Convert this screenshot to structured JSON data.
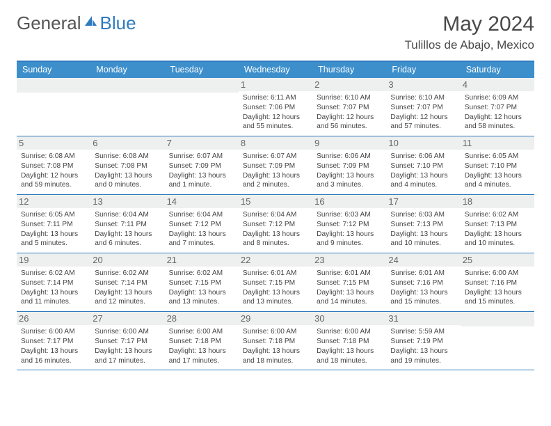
{
  "brand": {
    "part1": "General",
    "part2": "Blue"
  },
  "title": "May 2024",
  "location": "Tulillos de Abajo, Mexico",
  "colors": {
    "header_band": "#3d8fcc",
    "rule": "#2f7bbf",
    "daynum_bg": "#eef0ef",
    "text": "#444444",
    "title_text": "#4a4a4a"
  },
  "layout": {
    "first_weekday_index": 3,
    "num_days": 31,
    "columns": 7
  },
  "dow": [
    "Sunday",
    "Monday",
    "Tuesday",
    "Wednesday",
    "Thursday",
    "Friday",
    "Saturday"
  ],
  "days": [
    {
      "n": 1,
      "sunrise": "6:11 AM",
      "sunset": "7:06 PM",
      "daylight": "12 hours and 55 minutes."
    },
    {
      "n": 2,
      "sunrise": "6:10 AM",
      "sunset": "7:07 PM",
      "daylight": "12 hours and 56 minutes."
    },
    {
      "n": 3,
      "sunrise": "6:10 AM",
      "sunset": "7:07 PM",
      "daylight": "12 hours and 57 minutes."
    },
    {
      "n": 4,
      "sunrise": "6:09 AM",
      "sunset": "7:07 PM",
      "daylight": "12 hours and 58 minutes."
    },
    {
      "n": 5,
      "sunrise": "6:08 AM",
      "sunset": "7:08 PM",
      "daylight": "12 hours and 59 minutes."
    },
    {
      "n": 6,
      "sunrise": "6:08 AM",
      "sunset": "7:08 PM",
      "daylight": "13 hours and 0 minutes."
    },
    {
      "n": 7,
      "sunrise": "6:07 AM",
      "sunset": "7:09 PM",
      "daylight": "13 hours and 1 minute."
    },
    {
      "n": 8,
      "sunrise": "6:07 AM",
      "sunset": "7:09 PM",
      "daylight": "13 hours and 2 minutes."
    },
    {
      "n": 9,
      "sunrise": "6:06 AM",
      "sunset": "7:09 PM",
      "daylight": "13 hours and 3 minutes."
    },
    {
      "n": 10,
      "sunrise": "6:06 AM",
      "sunset": "7:10 PM",
      "daylight": "13 hours and 4 minutes."
    },
    {
      "n": 11,
      "sunrise": "6:05 AM",
      "sunset": "7:10 PM",
      "daylight": "13 hours and 4 minutes."
    },
    {
      "n": 12,
      "sunrise": "6:05 AM",
      "sunset": "7:11 PM",
      "daylight": "13 hours and 5 minutes."
    },
    {
      "n": 13,
      "sunrise": "6:04 AM",
      "sunset": "7:11 PM",
      "daylight": "13 hours and 6 minutes."
    },
    {
      "n": 14,
      "sunrise": "6:04 AM",
      "sunset": "7:12 PM",
      "daylight": "13 hours and 7 minutes."
    },
    {
      "n": 15,
      "sunrise": "6:04 AM",
      "sunset": "7:12 PM",
      "daylight": "13 hours and 8 minutes."
    },
    {
      "n": 16,
      "sunrise": "6:03 AM",
      "sunset": "7:12 PM",
      "daylight": "13 hours and 9 minutes."
    },
    {
      "n": 17,
      "sunrise": "6:03 AM",
      "sunset": "7:13 PM",
      "daylight": "13 hours and 10 minutes."
    },
    {
      "n": 18,
      "sunrise": "6:02 AM",
      "sunset": "7:13 PM",
      "daylight": "13 hours and 10 minutes."
    },
    {
      "n": 19,
      "sunrise": "6:02 AM",
      "sunset": "7:14 PM",
      "daylight": "13 hours and 11 minutes."
    },
    {
      "n": 20,
      "sunrise": "6:02 AM",
      "sunset": "7:14 PM",
      "daylight": "13 hours and 12 minutes."
    },
    {
      "n": 21,
      "sunrise": "6:02 AM",
      "sunset": "7:15 PM",
      "daylight": "13 hours and 13 minutes."
    },
    {
      "n": 22,
      "sunrise": "6:01 AM",
      "sunset": "7:15 PM",
      "daylight": "13 hours and 13 minutes."
    },
    {
      "n": 23,
      "sunrise": "6:01 AM",
      "sunset": "7:15 PM",
      "daylight": "13 hours and 14 minutes."
    },
    {
      "n": 24,
      "sunrise": "6:01 AM",
      "sunset": "7:16 PM",
      "daylight": "13 hours and 15 minutes."
    },
    {
      "n": 25,
      "sunrise": "6:00 AM",
      "sunset": "7:16 PM",
      "daylight": "13 hours and 15 minutes."
    },
    {
      "n": 26,
      "sunrise": "6:00 AM",
      "sunset": "7:17 PM",
      "daylight": "13 hours and 16 minutes."
    },
    {
      "n": 27,
      "sunrise": "6:00 AM",
      "sunset": "7:17 PM",
      "daylight": "13 hours and 17 minutes."
    },
    {
      "n": 28,
      "sunrise": "6:00 AM",
      "sunset": "7:18 PM",
      "daylight": "13 hours and 17 minutes."
    },
    {
      "n": 29,
      "sunrise": "6:00 AM",
      "sunset": "7:18 PM",
      "daylight": "13 hours and 18 minutes."
    },
    {
      "n": 30,
      "sunrise": "6:00 AM",
      "sunset": "7:18 PM",
      "daylight": "13 hours and 18 minutes."
    },
    {
      "n": 31,
      "sunrise": "5:59 AM",
      "sunset": "7:19 PM",
      "daylight": "13 hours and 19 minutes."
    }
  ],
  "labels": {
    "sunrise": "Sunrise:",
    "sunset": "Sunset:",
    "daylight": "Daylight:"
  }
}
